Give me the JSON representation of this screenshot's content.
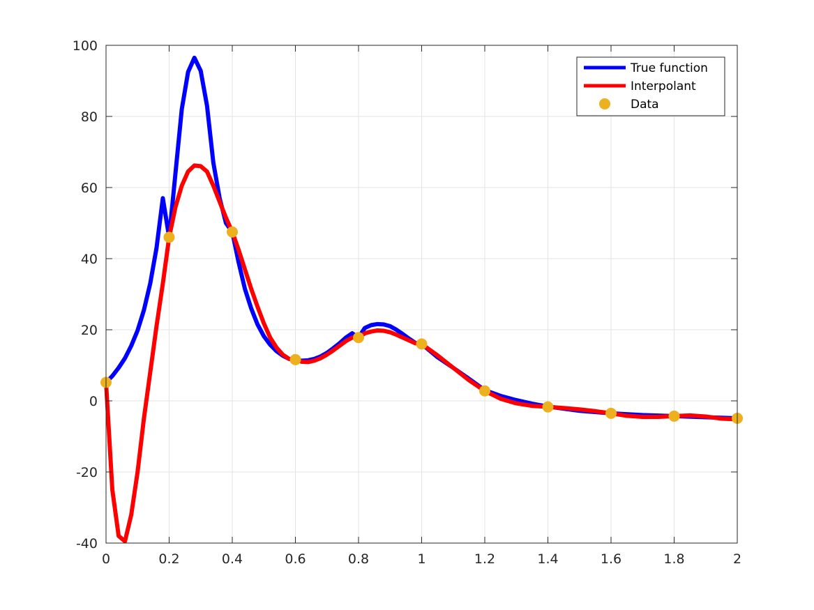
{
  "chart_data": {
    "type": "line",
    "title": "",
    "xlabel": "",
    "ylabel": "",
    "xlim": [
      0,
      2
    ],
    "ylim": [
      -40,
      100
    ],
    "grid": true,
    "box": true,
    "legend_position": "top-right",
    "x_ticks": [
      0,
      0.2,
      0.4,
      0.6,
      0.8,
      1,
      1.2,
      1.4,
      1.6,
      1.8,
      2
    ],
    "x_tick_labels": [
      "0",
      "0.2",
      "0.4",
      "0.6",
      "0.8",
      "1",
      "1.2",
      "1.4",
      "1.6",
      "1.8",
      "2"
    ],
    "y_ticks": [
      -40,
      -20,
      0,
      20,
      40,
      60,
      80,
      100
    ],
    "y_tick_labels": [
      "-40",
      "-20",
      "0",
      "20",
      "40",
      "60",
      "80",
      "100"
    ],
    "series": [
      {
        "name": "True function",
        "style": "line",
        "color": "#0000ff",
        "x": [
          0,
          0.02,
          0.04,
          0.06,
          0.08,
          0.1,
          0.12,
          0.14,
          0.16,
          0.18,
          0.2,
          0.22,
          0.24,
          0.26,
          0.28,
          0.3,
          0.32,
          0.34,
          0.36,
          0.38,
          0.4,
          0.42,
          0.44,
          0.46,
          0.48,
          0.5,
          0.52,
          0.54,
          0.56,
          0.58,
          0.6,
          0.62,
          0.64,
          0.66,
          0.68,
          0.7,
          0.72,
          0.74,
          0.76,
          0.78,
          0.8,
          0.82,
          0.84,
          0.86,
          0.88,
          0.9,
          0.92,
          0.94,
          0.96,
          0.98,
          1.0,
          1.05,
          1.1,
          1.15,
          1.2,
          1.25,
          1.3,
          1.35,
          1.4,
          1.5,
          1.6,
          1.7,
          1.8,
          1.9,
          2.0
        ],
        "y": [
          5.2,
          7.0,
          9.3,
          12.0,
          15.5,
          19.8,
          25.5,
          33.0,
          43.0,
          57.0,
          46.0,
          64.0,
          82.0,
          92.5,
          96.5,
          92.8,
          83.0,
          67.0,
          57.0,
          50.0,
          47.5,
          39.0,
          31.5,
          26.0,
          21.5,
          18.2,
          15.8,
          14.0,
          12.7,
          11.8,
          11.4,
          11.3,
          11.4,
          11.8,
          12.5,
          13.5,
          14.8,
          16.2,
          17.8,
          19.0,
          17.8,
          20.5,
          21.3,
          21.6,
          21.5,
          21.0,
          20.0,
          18.8,
          17.5,
          16.3,
          16.0,
          12.3,
          9.3,
          6.2,
          3.0,
          1.4,
          0.2,
          -0.8,
          -1.6,
          -2.8,
          -3.5,
          -4.0,
          -4.3,
          -4.6,
          -4.9
        ]
      },
      {
        "name": "Interpolant",
        "style": "line",
        "color": "#ff0000",
        "x": [
          0,
          0.02,
          0.04,
          0.06,
          0.08,
          0.1,
          0.12,
          0.14,
          0.16,
          0.18,
          0.2,
          0.22,
          0.24,
          0.26,
          0.28,
          0.3,
          0.32,
          0.34,
          0.36,
          0.38,
          0.4,
          0.42,
          0.44,
          0.46,
          0.48,
          0.5,
          0.52,
          0.54,
          0.56,
          0.58,
          0.6,
          0.62,
          0.64,
          0.66,
          0.68,
          0.7,
          0.72,
          0.74,
          0.76,
          0.78,
          0.8,
          0.82,
          0.84,
          0.86,
          0.88,
          0.9,
          0.92,
          0.94,
          0.96,
          0.98,
          1.0,
          1.05,
          1.1,
          1.15,
          1.2,
          1.25,
          1.3,
          1.35,
          1.4,
          1.45,
          1.5,
          1.55,
          1.6,
          1.65,
          1.7,
          1.75,
          1.8,
          1.85,
          1.9,
          1.95,
          2.0
        ],
        "y": [
          5.2,
          -25.0,
          -38.0,
          -39.5,
          -32.0,
          -20.0,
          -5.0,
          8.0,
          21.0,
          33.0,
          46.0,
          54.5,
          60.5,
          64.5,
          66.2,
          66.0,
          64.5,
          60.5,
          56.0,
          51.5,
          47.5,
          42.5,
          37.0,
          31.5,
          26.5,
          21.8,
          17.8,
          15.0,
          13.0,
          11.8,
          11.6,
          11.0,
          10.9,
          11.3,
          12.0,
          13.0,
          14.2,
          15.5,
          16.8,
          17.8,
          17.8,
          19.0,
          19.5,
          19.8,
          19.7,
          19.3,
          18.6,
          17.8,
          17.0,
          16.2,
          16.0,
          12.8,
          9.3,
          5.8,
          2.8,
          0.6,
          -0.7,
          -1.4,
          -1.7,
          -2.0,
          -2.4,
          -2.9,
          -3.5,
          -4.2,
          -4.5,
          -4.5,
          -4.3,
          -4.1,
          -4.4,
          -5.0,
          -5.2
        ]
      },
      {
        "name": "Data",
        "style": "markers",
        "color": "#edb120",
        "x": [
          0,
          0.2,
          0.4,
          0.6,
          0.8,
          1.0,
          1.2,
          1.4,
          1.6,
          1.8,
          2.0
        ],
        "y": [
          5.2,
          46.0,
          47.5,
          11.6,
          17.8,
          16.0,
          2.8,
          -1.7,
          -3.5,
          -4.3,
          -4.9
        ]
      }
    ]
  }
}
